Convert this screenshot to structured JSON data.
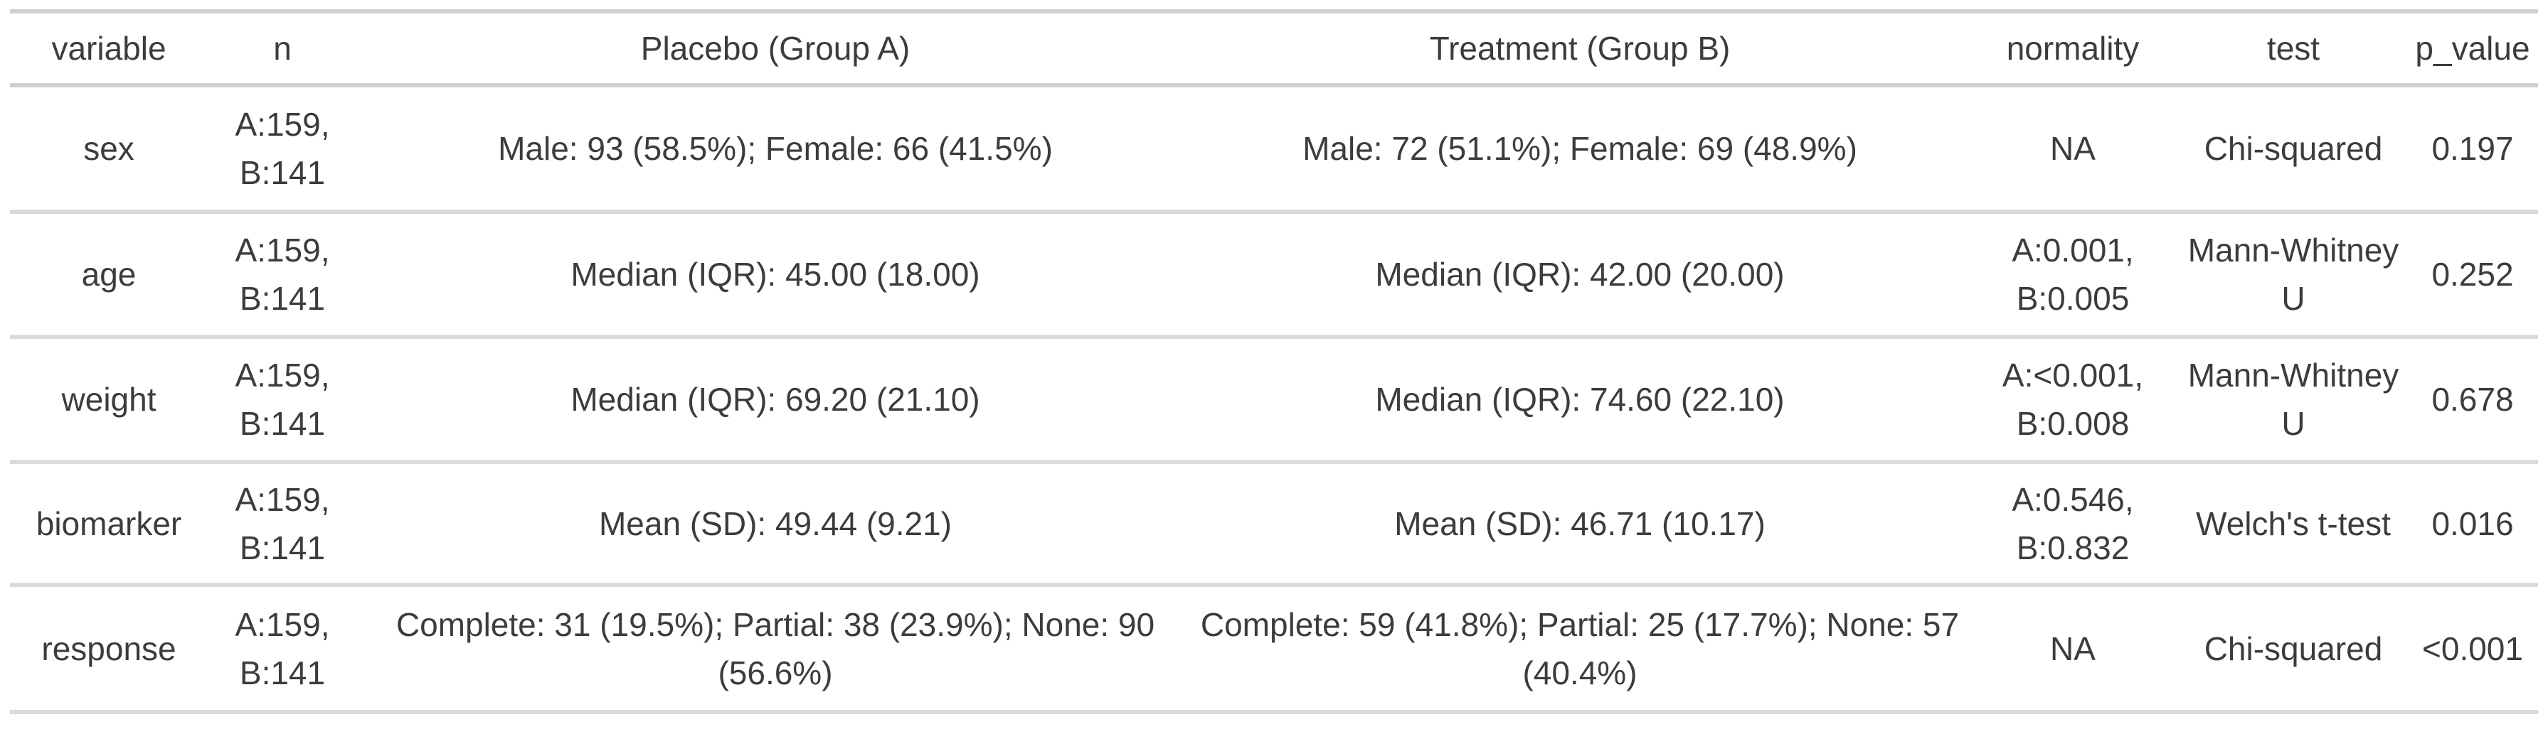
{
  "colors": {
    "background": "#ffffff",
    "text": "#3c3c3c",
    "header_border": "#d0d0d0",
    "row_border": "#dbdbdb"
  },
  "table": {
    "headers": {
      "variable": "variable",
      "n": "n",
      "placebo": "Placebo (Group A)",
      "treatment": "Treatment (Group B)",
      "normality": "normality",
      "test": "test",
      "p_value": "p_value"
    },
    "rows": [
      {
        "variable": "sex",
        "n": "A:159, B:141",
        "placebo": "Male: 93 (58.5%); Female: 66 (41.5%)",
        "treatment": "Male: 72 (51.1%); Female: 69 (48.9%)",
        "normality": "NA",
        "test": "Chi-squared",
        "p_value": "0.197"
      },
      {
        "variable": "age",
        "n": "A:159, B:141",
        "placebo": "Median (IQR): 45.00 (18.00)",
        "treatment": "Median (IQR): 42.00 (20.00)",
        "normality": "A:0.001, B:0.005",
        "test": "Mann-Whitney U",
        "p_value": "0.252"
      },
      {
        "variable": "weight",
        "n": "A:159, B:141",
        "placebo": "Median (IQR): 69.20 (21.10)",
        "treatment": "Median (IQR): 74.60 (22.10)",
        "normality": "A:<0.001, B:0.008",
        "test": "Mann-Whitney U",
        "p_value": "0.678"
      },
      {
        "variable": "biomarker",
        "n": "A:159, B:141",
        "placebo": "Mean (SD): 49.44 (9.21)",
        "treatment": "Mean (SD): 46.71 (10.17)",
        "normality": "A:0.546, B:0.832",
        "test": "Welch's t-test",
        "p_value": "0.016"
      },
      {
        "variable": "response",
        "n": "A:159, B:141",
        "placebo": "Complete: 31 (19.5%); Partial: 38 (23.9%); None: 90 (56.6%)",
        "treatment": "Complete: 59 (41.8%); Partial: 25 (17.7%); None: 57 (40.4%)",
        "normality": "NA",
        "test": "Chi-squared",
        "p_value": "<0.001"
      }
    ]
  },
  "chart_data": {
    "type": "table",
    "title": "",
    "columns": [
      "variable",
      "n",
      "Placebo (Group A)",
      "Treatment (Group B)",
      "normality",
      "test",
      "p_value"
    ],
    "rows": [
      [
        "sex",
        "A:159, B:141",
        "Male: 93 (58.5%); Female: 66 (41.5%)",
        "Male: 72 (51.1%); Female: 69 (48.9%)",
        "NA",
        "Chi-squared",
        "0.197"
      ],
      [
        "age",
        "A:159, B:141",
        "Median (IQR): 45.00 (18.00)",
        "Median (IQR): 42.00 (20.00)",
        "A:0.001, B:0.005",
        "Mann-Whitney U",
        "0.252"
      ],
      [
        "weight",
        "A:159, B:141",
        "Median (IQR): 69.20 (21.10)",
        "Median (IQR): 74.60 (22.10)",
        "A:<0.001, B:0.008",
        "Mann-Whitney U",
        "0.678"
      ],
      [
        "biomarker",
        "A:159, B:141",
        "Mean (SD): 49.44 (9.21)",
        "Mean (SD): 46.71 (10.17)",
        "A:0.546, B:0.832",
        "Welch's t-test",
        "0.016"
      ],
      [
        "response",
        "A:159, B:141",
        "Complete: 31 (19.5%); Partial: 38 (23.9%); None: 90 (56.6%)",
        "Complete: 59 (41.8%); Partial: 25 (17.7%); None: 57 (40.4%)",
        "NA",
        "Chi-squared",
        "<0.001"
      ]
    ]
  }
}
